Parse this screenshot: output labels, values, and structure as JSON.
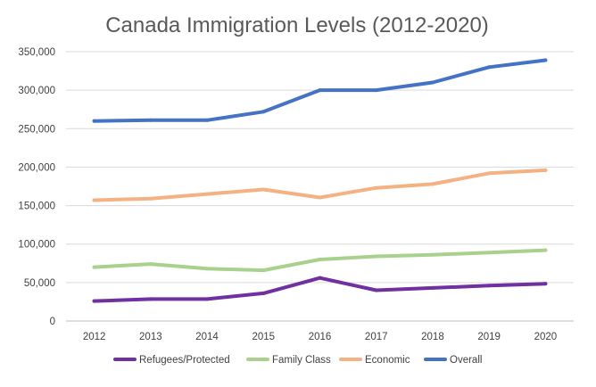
{
  "chart_data": {
    "type": "line",
    "title": "Canada Immigration Levels (2012-2020)",
    "xlabel": "",
    "ylabel": "",
    "categories": [
      "2012",
      "2013",
      "2014",
      "2015",
      "2016",
      "2017",
      "2018",
      "2019",
      "2020"
    ],
    "ylim": [
      0,
      350000
    ],
    "yticks": [
      0,
      50000,
      100000,
      150000,
      200000,
      250000,
      300000,
      350000
    ],
    "ytick_labels": [
      "0",
      "50,000",
      "100,000",
      "150,000",
      "200,000",
      "250,000",
      "300,000",
      "350,000"
    ],
    "grid": true,
    "legend_position": "bottom",
    "series": [
      {
        "name": "Refugees/Protected",
        "color": "#7030A0",
        "values": [
          26000,
          28500,
          28500,
          36000,
          56000,
          40000,
          43000,
          46000,
          48500
        ]
      },
      {
        "name": "Family Class",
        "color": "#A9D18E",
        "values": [
          70000,
          74000,
          68000,
          66000,
          80000,
          84000,
          86000,
          89000,
          92000
        ]
      },
      {
        "name": "Economic",
        "color": "#F4B183",
        "values": [
          157000,
          159000,
          165000,
          171000,
          160500,
          173000,
          178000,
          192000,
          196000
        ]
      },
      {
        "name": "Overall",
        "color": "#4472C4",
        "values": [
          260000,
          261000,
          261000,
          272000,
          300000,
          300000,
          310000,
          330000,
          339000
        ]
      }
    ]
  }
}
